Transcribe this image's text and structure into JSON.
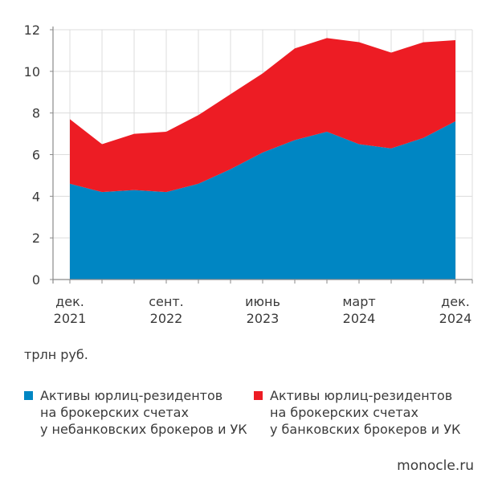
{
  "chart_data": {
    "type": "area",
    "stacked": true,
    "ylim": [
      0,
      12
    ],
    "yticks": [
      0,
      2,
      4,
      6,
      8,
      10,
      12
    ],
    "x_tick_labels": [
      {
        "index": 0,
        "line1": "дек.",
        "line2": "2021"
      },
      {
        "index": 3,
        "line1": "сент.",
        "line2": "2022"
      },
      {
        "index": 6,
        "line1": "июнь",
        "line2": "2023"
      },
      {
        "index": 9,
        "line1": "март",
        "line2": "2024"
      },
      {
        "index": 12,
        "line1": "дек.",
        "line2": "2024"
      }
    ],
    "x": [
      "дек. 2021",
      "мар. 2022",
      "июнь 2022",
      "сент. 2022",
      "дек. 2022",
      "мар. 2023",
      "июнь 2023",
      "сент. 2023",
      "дек. 2023",
      "март 2024",
      "июнь 2024",
      "сент. 2024",
      "дек. 2024"
    ],
    "series": [
      {
        "name": "Активы юрлиц-резидентов на брокерских счетах у небанковских брокеров и УК",
        "color": "#0086c3",
        "values": [
          4.6,
          4.2,
          4.3,
          4.2,
          4.6,
          5.3,
          6.1,
          6.7,
          7.1,
          6.5,
          6.3,
          6.8,
          7.6
        ]
      },
      {
        "name": "Активы юрлиц-резидентов на брокерских счетах у банковских брокеров и УК",
        "color": "#ed1c24",
        "values": [
          3.1,
          2.3,
          2.7,
          2.9,
          3.3,
          3.6,
          3.8,
          4.4,
          4.5,
          4.9,
          4.6,
          4.6,
          3.9
        ]
      }
    ],
    "unit": "трлн руб.",
    "grid": true,
    "legend_position": "bottom"
  },
  "legend": {
    "items": [
      {
        "color": "#0086c3",
        "lines": [
          "Активы юрлиц-резидентов",
          "на брокерских счетах",
          "у небанковских брокеров и УК"
        ]
      },
      {
        "color": "#ed1c24",
        "lines": [
          "Активы юрлиц-резидентов",
          "на брокерских счетах",
          "у банковских брокеров и УК"
        ]
      }
    ]
  },
  "unit_label": "трлн руб.",
  "source": "monocle.ru"
}
